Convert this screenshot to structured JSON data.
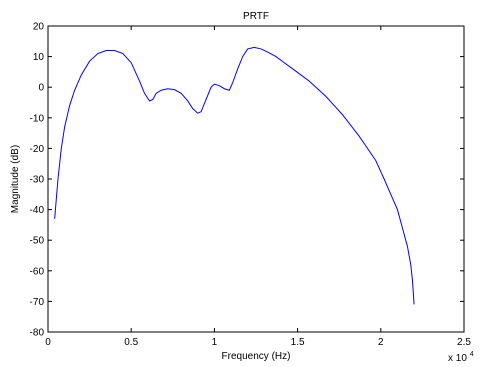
{
  "chart_data": {
    "type": "line",
    "title": "PRTF",
    "xlabel": "Frequency (Hz)",
    "ylabel": "Magnitude (dB)",
    "x_multiplier_label": "x 10",
    "x_multiplier_exponent": "4",
    "xlim": [
      0,
      2.5
    ],
    "ylim": [
      -80,
      20
    ],
    "xticks": [
      0,
      0.5,
      1,
      1.5,
      2,
      2.5
    ],
    "xtick_labels": [
      "0",
      "0.5",
      "1",
      "1.5",
      "2",
      "2.5"
    ],
    "yticks": [
      -80,
      -70,
      -60,
      -50,
      -40,
      -30,
      -20,
      -10,
      0,
      10,
      20
    ],
    "ytick_labels": [
      "-80",
      "-70",
      "-60",
      "-50",
      "-40",
      "-30",
      "-20",
      "-10",
      "0",
      "10",
      "20"
    ],
    "grid": false,
    "line_color": "#0000ff",
    "series": [
      {
        "x": [
          0.04,
          0.06,
          0.08,
          0.1,
          0.13,
          0.16,
          0.2,
          0.25,
          0.3,
          0.35,
          0.4,
          0.45,
          0.5,
          0.55,
          0.58,
          0.61,
          0.63,
          0.65,
          0.68,
          0.72,
          0.76,
          0.8,
          0.84,
          0.87,
          0.9,
          0.92,
          0.95,
          0.98,
          1.0,
          1.03,
          1.06,
          1.09,
          1.11,
          1.14,
          1.17,
          1.2,
          1.24,
          1.28,
          1.32,
          1.37,
          1.42,
          1.47,
          1.52,
          1.57,
          1.62,
          1.67,
          1.72,
          1.77,
          1.82,
          1.87,
          1.92,
          1.97,
          2.02,
          2.06,
          2.1,
          2.14,
          2.16,
          2.18,
          2.19,
          2.2
        ],
        "values": [
          -43,
          -30,
          -20,
          -13,
          -6,
          -1,
          4,
          8.5,
          11,
          12,
          12,
          11,
          8,
          2,
          -2,
          -4.5,
          -4,
          -2,
          -1,
          -0.5,
          -0.8,
          -2,
          -4.5,
          -7,
          -8.5,
          -8,
          -4,
          0,
          1,
          0.5,
          -0.5,
          -1,
          1.5,
          6,
          10,
          12.5,
          13,
          12.5,
          11.5,
          10,
          8,
          6,
          4,
          2,
          -0.5,
          -3,
          -6,
          -9,
          -12.5,
          -16,
          -20,
          -24,
          -30,
          -35,
          -40,
          -48,
          -52,
          -58,
          -63,
          -71
        ]
      }
    ]
  }
}
